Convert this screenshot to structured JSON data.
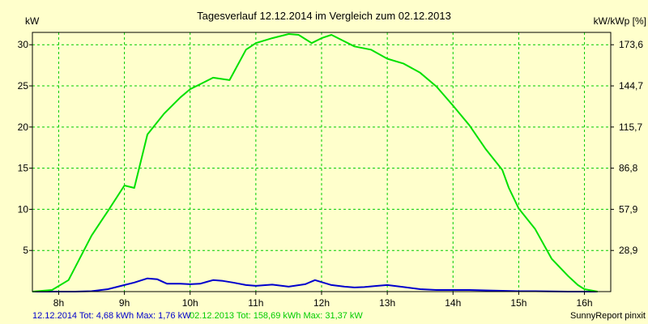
{
  "chart_data": {
    "type": "line",
    "title": "Tagesverlauf 12.12.2014 im Vergleich zum 02.12.2013",
    "ylabel_left": "kW",
    "ylabel_right": "kW/kWp [%]",
    "xlim": [
      7.6,
      16.4
    ],
    "ylim": [
      0,
      31.5
    ],
    "x_ticks": [
      8,
      9,
      10,
      11,
      12,
      13,
      14,
      15,
      16
    ],
    "x_tick_labels": [
      "8h",
      "9h",
      "10h",
      "11h",
      "12h",
      "13h",
      "14h",
      "15h",
      "16h"
    ],
    "y_ticks_left": [
      5,
      10,
      15,
      20,
      25,
      30
    ],
    "y_tick_labels_left": [
      "5",
      "10",
      "15",
      "20",
      "25",
      "30"
    ],
    "y_ticks_right": [
      {
        "at": 5,
        "label": "28,9"
      },
      {
        "at": 10,
        "label": "57,9"
      },
      {
        "at": 15,
        "label": "86,8"
      },
      {
        "at": 20,
        "label": "115,7"
      },
      {
        "at": 25,
        "label": "144,7"
      },
      {
        "at": 30,
        "label": "173,6"
      }
    ],
    "grid": true,
    "colors": {
      "background": "#ffffcc",
      "plot_bg": "#ffffcc",
      "grid": "#00cc00",
      "series_2014": "#0000cc",
      "series_2013": "#00e000"
    },
    "series": [
      {
        "name": "12.12.2014",
        "color": "#0000cc",
        "x": [
          7.6,
          8.0,
          8.25,
          8.5,
          8.75,
          9.0,
          9.15,
          9.35,
          9.5,
          9.65,
          9.85,
          10.0,
          10.15,
          10.35,
          10.5,
          10.65,
          10.85,
          11.0,
          11.25,
          11.5,
          11.75,
          11.9,
          12.15,
          12.35,
          12.5,
          12.65,
          12.85,
          13.0,
          13.25,
          13.5,
          13.75,
          14.0,
          14.25,
          14.5,
          14.75,
          15.0,
          15.25,
          15.5,
          15.75,
          16.0,
          16.2
        ],
        "y": [
          0,
          0,
          0,
          0.05,
          0.3,
          0.8,
          1.1,
          1.6,
          1.5,
          0.95,
          0.95,
          0.9,
          0.95,
          1.4,
          1.3,
          1.1,
          0.8,
          0.7,
          0.85,
          0.6,
          0.9,
          1.4,
          0.8,
          0.6,
          0.5,
          0.55,
          0.7,
          0.8,
          0.55,
          0.3,
          0.2,
          0.2,
          0.2,
          0.15,
          0.1,
          0.05,
          0.05,
          0.02,
          0,
          0,
          0
        ]
      },
      {
        "name": "02.12.2013",
        "color": "#00e000",
        "x": [
          7.6,
          7.9,
          8.15,
          8.5,
          8.75,
          9.0,
          9.1,
          9.15,
          9.35,
          9.6,
          9.85,
          10.0,
          10.2,
          10.35,
          10.6,
          10.85,
          11.0,
          11.25,
          11.5,
          11.65,
          11.85,
          12.0,
          12.15,
          12.3,
          12.5,
          12.75,
          13.0,
          13.25,
          13.5,
          13.75,
          14.0,
          14.25,
          14.5,
          14.75,
          14.85,
          15.0,
          15.25,
          15.5,
          15.75,
          15.9,
          16.0,
          16.2
        ],
        "y": [
          0,
          0.2,
          1.4,
          6.8,
          9.8,
          12.9,
          12.7,
          12.6,
          19.1,
          21.6,
          23.6,
          24.6,
          25.4,
          26.0,
          25.7,
          29.4,
          30.2,
          30.8,
          31.3,
          31.2,
          30.2,
          30.8,
          31.2,
          30.6,
          29.8,
          29.4,
          28.3,
          27.7,
          26.6,
          24.9,
          22.6,
          20.2,
          17.3,
          14.8,
          12.6,
          10.1,
          7.6,
          4.0,
          1.9,
          0.8,
          0.3,
          0
        ]
      }
    ],
    "legend": "bottom-left"
  },
  "footer": {
    "label_2014": "12.12.2014 Tot: 4,68 kWh Max: 1,76 kW",
    "label_2013": "02.12.2013 Tot: 158,69 kWh Max: 31,37 kW",
    "credit": "SunnyReport pinxit"
  }
}
